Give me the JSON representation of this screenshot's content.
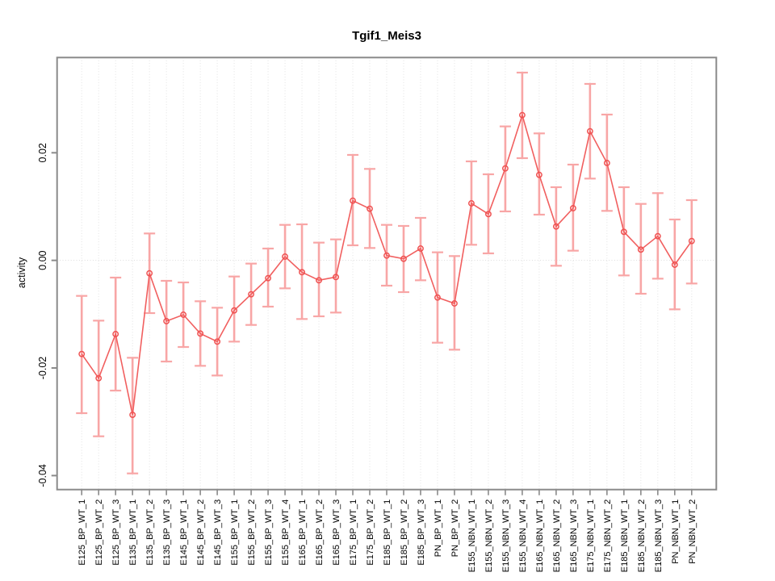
{
  "chart_data": {
    "type": "line",
    "title": "Tgif1_Meis3",
    "xlabel": "",
    "ylabel": "activity",
    "ylim": [
      -0.0426,
      0.0377
    ],
    "yticks": [
      -0.04,
      -0.02,
      0.0,
      0.02
    ],
    "ytick_labels": [
      "-0.04",
      "-0.02",
      "0.00",
      "0.02"
    ],
    "grid": "dotted vertical line per category plus dotted horizontal zero line",
    "legend_position": "none",
    "marker": "open-circle",
    "error_bars": true,
    "categories": [
      "E125_BP_WT_1",
      "E125_BP_WT_2",
      "E125_BP_WT_3",
      "E135_BP_WT_1",
      "E135_BP_WT_2",
      "E135_BP_WT_3",
      "E145_BP_WT_1",
      "E145_BP_WT_2",
      "E145_BP_WT_3",
      "E155_BP_WT_1",
      "E155_BP_WT_2",
      "E155_BP_WT_3",
      "E155_BP_WT_4",
      "E165_BP_WT_1",
      "E165_BP_WT_2",
      "E165_BP_WT_3",
      "E175_BP_WT_1",
      "E175_BP_WT_2",
      "E185_BP_WT_1",
      "E185_BP_WT_2",
      "E185_BP_WT_3",
      "PN_BP_WT_1",
      "PN_BP_WT_2",
      "E155_NBN_WT_1",
      "E155_NBN_WT_2",
      "E155_NBN_WT_3",
      "E155_NBN_WT_4",
      "E165_NBN_WT_1",
      "E165_NBN_WT_2",
      "E165_NBN_WT_3",
      "E175_NBN_WT_1",
      "E175_NBN_WT_2",
      "E185_NBN_WT_1",
      "E185_NBN_WT_2",
      "E185_NBN_WT_3",
      "PN_NBN_WT_1",
      "PN_NBN_WT_2"
    ],
    "series": [
      {
        "name": "activity",
        "values": [
          -0.0174,
          -0.0219,
          -0.0137,
          -0.0287,
          -0.0024,
          -0.0113,
          -0.0101,
          -0.0136,
          -0.0151,
          -0.0093,
          -0.0063,
          -0.0033,
          0.0007,
          -0.0022,
          -0.0037,
          -0.0031,
          0.0111,
          0.0096,
          0.0009,
          0.0003,
          0.0022,
          -0.0069,
          -0.008,
          0.0106,
          0.0086,
          0.0171,
          0.027,
          0.0159,
          0.0063,
          0.0097,
          0.024,
          0.0181,
          0.0053,
          0.002,
          0.0045,
          -0.0008,
          0.0036
        ],
        "err_hi": [
          -0.0066,
          -0.0112,
          -0.0032,
          -0.0181,
          0.005,
          -0.0038,
          -0.0041,
          -0.0076,
          -0.0088,
          -0.003,
          -0.0006,
          0.0022,
          0.0066,
          0.0067,
          0.0033,
          0.0039,
          0.0196,
          0.017,
          0.0066,
          0.0064,
          0.0079,
          0.0015,
          0.0008,
          0.0184,
          0.016,
          0.0249,
          0.0349,
          0.0236,
          0.0136,
          0.0178,
          0.0328,
          0.0271,
          0.0136,
          0.0105,
          0.0125,
          0.0076,
          0.0112
        ],
        "err_lo": [
          -0.0284,
          -0.0327,
          -0.0242,
          -0.0396,
          -0.0098,
          -0.0188,
          -0.0161,
          -0.0196,
          -0.0214,
          -0.0151,
          -0.012,
          -0.0086,
          -0.0052,
          -0.0109,
          -0.0104,
          -0.0097,
          0.0028,
          0.0023,
          -0.0047,
          -0.0059,
          -0.0037,
          -0.0153,
          -0.0166,
          0.0029,
          0.0013,
          0.0091,
          0.019,
          0.0085,
          -0.001,
          0.0018,
          0.0152,
          0.0092,
          -0.0028,
          -0.0062,
          -0.0034,
          -0.0091,
          -0.0043
        ]
      }
    ],
    "colors": {
      "line": "#f15f5f",
      "marker": "#ef5252",
      "error_bar": "#f8a6a6",
      "frame": "#8a8a8a",
      "grid": "#e2e2e2",
      "zero_line": "#dadada",
      "text": "#000000",
      "background": "#ffffff"
    }
  }
}
